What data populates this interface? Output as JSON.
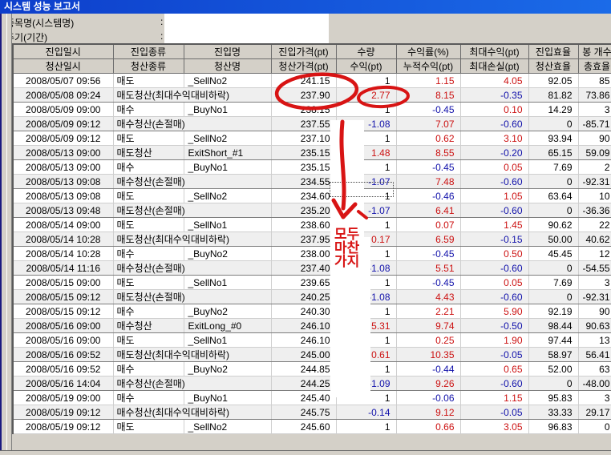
{
  "window": {
    "title": "시스템 성능 보고서"
  },
  "info": {
    "fields": [
      {
        "label": "종목명(시스템명)",
        "colon": ":",
        "value": ""
      },
      {
        "label": "주기(기간)",
        "colon": ":",
        "value": ""
      }
    ]
  },
  "table": {
    "header_row1": [
      "진입일시",
      "진입종류",
      "진입명",
      "진입가격(pt)",
      "수량",
      "수익률(%)",
      "최대수익(pt)",
      "진입효율",
      "봉 개수"
    ],
    "header_row2": [
      "청산일시",
      "청산종류",
      "청산명",
      "청산가격(pt)",
      "수익(pt)",
      "누적수익(pt)",
      "최대손실(pt)",
      "청산효율",
      "총효율"
    ],
    "rows": [
      {
        "kind": "entry",
        "datetime": "2008/05/07 09:56",
        "type": "매도",
        "name": "_SellNo2",
        "price": "241.15",
        "qty": "1",
        "pct": "1.15",
        "max": "4.05",
        "eff": "92.05",
        "bars": "85"
      },
      {
        "kind": "exit",
        "datetime": "2008/05/08 09:24",
        "type": "매도청산(최대수익대비하락)",
        "name": "",
        "price": "237.90",
        "qty": "2.77",
        "pct": "8.15",
        "max": "-0.35",
        "eff": "81.82",
        "bars": "73.86"
      },
      {
        "kind": "entry",
        "datetime": "2008/05/09 09:00",
        "type": "매수",
        "name": "_BuyNo1",
        "price": "238.15",
        "qty": "1",
        "pct": "-0.45",
        "max": "0.10",
        "eff": "14.29",
        "bars": "3"
      },
      {
        "kind": "exit",
        "datetime": "2008/05/09 09:12",
        "type": "매수청산(손절매)",
        "name": "",
        "price": "237.55",
        "qty": "-1.08",
        "pct": "7.07",
        "max": "-0.60",
        "eff": "0",
        "bars": "-85.71"
      },
      {
        "kind": "entry",
        "datetime": "2008/05/09 09:12",
        "type": "매도",
        "name": "_SellNo2",
        "price": "237.10",
        "qty": "1",
        "pct": "0.62",
        "max": "3.10",
        "eff": "93.94",
        "bars": "90"
      },
      {
        "kind": "exit",
        "datetime": "2008/05/13 09:00",
        "type": "매도청산",
        "name": "ExitShort_#1",
        "price": "235.15",
        "qty": "1.48",
        "pct": "8.55",
        "max": "-0.20",
        "eff": "65.15",
        "bars": "59.09"
      },
      {
        "kind": "entry",
        "datetime": "2008/05/13 09:00",
        "type": "매수",
        "name": "_BuyNo1",
        "price": "235.15",
        "qty": "1",
        "pct": "-0.45",
        "max": "0.05",
        "eff": "7.69",
        "bars": "2"
      },
      {
        "kind": "exit",
        "datetime": "2008/05/13 09:08",
        "type": "매수청산(손절매)",
        "name": "",
        "price": "234.55",
        "qty": "-1.07",
        "pct": "7.48",
        "max": "-0.60",
        "eff": "0",
        "bars": "-92.31",
        "focus": true
      },
      {
        "kind": "entry",
        "datetime": "2008/05/13 09:08",
        "type": "매도",
        "name": "_SellNo2",
        "price": "234.60",
        "qty": "1",
        "pct": "-0.46",
        "max": "1.05",
        "eff": "63.64",
        "bars": "10"
      },
      {
        "kind": "exit",
        "datetime": "2008/05/13 09:48",
        "type": "매도청산(손절매)",
        "name": "",
        "price": "235.20",
        "qty": "-1.07",
        "pct": "6.41",
        "max": "-0.60",
        "eff": "0",
        "bars": "-36.36"
      },
      {
        "kind": "entry",
        "datetime": "2008/05/14 09:00",
        "type": "매도",
        "name": "_SellNo1",
        "price": "238.60",
        "qty": "1",
        "pct": "0.07",
        "max": "1.45",
        "eff": "90.62",
        "bars": "22"
      },
      {
        "kind": "exit",
        "datetime": "2008/05/14 10:28",
        "type": "매도청산(최대수익대비하락)",
        "name": "",
        "price": "237.95",
        "qty": "0.17",
        "pct": "6.59",
        "max": "-0.15",
        "eff": "50.00",
        "bars": "40.62"
      },
      {
        "kind": "entry",
        "datetime": "2008/05/14 10:28",
        "type": "매수",
        "name": "_BuyNo2",
        "price": "238.00",
        "qty": "1",
        "pct": "-0.45",
        "max": "0.50",
        "eff": "45.45",
        "bars": "12"
      },
      {
        "kind": "exit",
        "datetime": "2008/05/14 11:16",
        "type": "매수청산(손절매)",
        "name": "",
        "price": "237.40",
        "qty": "-1.08",
        "pct": "5.51",
        "max": "-0.60",
        "eff": "0",
        "bars": "-54.55"
      },
      {
        "kind": "entry",
        "datetime": "2008/05/15 09:00",
        "type": "매도",
        "name": "_SellNo1",
        "price": "239.65",
        "qty": "1",
        "pct": "-0.45",
        "max": "0.05",
        "eff": "7.69",
        "bars": "3"
      },
      {
        "kind": "exit",
        "datetime": "2008/05/15 09:12",
        "type": "매도청산(손절매)",
        "name": "",
        "price": "240.25",
        "qty": "-1.08",
        "pct": "4.43",
        "max": "-0.60",
        "eff": "0",
        "bars": "-92.31"
      },
      {
        "kind": "entry",
        "datetime": "2008/05/15 09:12",
        "type": "매수",
        "name": "_BuyNo2",
        "price": "240.30",
        "qty": "1",
        "pct": "2.21",
        "max": "5.90",
        "eff": "92.19",
        "bars": "90"
      },
      {
        "kind": "exit",
        "datetime": "2008/05/16 09:00",
        "type": "매수청산",
        "name": "ExitLong_#0",
        "price": "246.10",
        "qty": "5.31",
        "pct": "9.74",
        "max": "-0.50",
        "eff": "98.44",
        "bars": "90.63"
      },
      {
        "kind": "entry",
        "datetime": "2008/05/16 09:00",
        "type": "매도",
        "name": "_SellNo1",
        "price": "246.10",
        "qty": "1",
        "pct": "0.25",
        "max": "1.90",
        "eff": "97.44",
        "bars": "13"
      },
      {
        "kind": "exit",
        "datetime": "2008/05/16 09:52",
        "type": "매도청산(최대수익대비하락)",
        "name": "",
        "price": "245.00",
        "qty": "0.61",
        "pct": "10.35",
        "max": "-0.05",
        "eff": "58.97",
        "bars": "56.41"
      },
      {
        "kind": "entry",
        "datetime": "2008/05/16 09:52",
        "type": "매수",
        "name": "_BuyNo2",
        "price": "244.85",
        "qty": "1",
        "pct": "-0.44",
        "max": "0.65",
        "eff": "52.00",
        "bars": "63"
      },
      {
        "kind": "exit",
        "datetime": "2008/05/16 14:04",
        "type": "매수청산(손절매)",
        "name": "",
        "price": "244.25",
        "qty": "-1.09",
        "pct": "9.26",
        "max": "-0.60",
        "eff": "0",
        "bars": "-48.00"
      },
      {
        "kind": "entry",
        "datetime": "2008/05/19 09:00",
        "type": "매수",
        "name": "_BuyNo1",
        "price": "245.40",
        "qty": "1",
        "pct": "-0.06",
        "max": "1.15",
        "eff": "95.83",
        "bars": "3"
      },
      {
        "kind": "exit",
        "datetime": "2008/05/19 09:12",
        "type": "매수청산(최대수익대비하락)",
        "name": "",
        "price": "245.75",
        "qty": "-0.14",
        "pct": "9.12",
        "max": "-0.05",
        "eff": "33.33",
        "bars": "29.17"
      },
      {
        "kind": "entry",
        "datetime": "2008/05/19 09:12",
        "type": "매도",
        "name": "_SellNo2",
        "price": "245.60",
        "qty": "1",
        "pct": "0.66",
        "max": "3.05",
        "eff": "96.83",
        "bars": "0"
      }
    ]
  },
  "annotations": {
    "note_lines": [
      "모두",
      "마찬",
      "가지"
    ],
    "note_full_text": "모두 마찬가지",
    "marker_color": "#d81414"
  },
  "colors": {
    "positive_value": "#cc1111",
    "negative_value": "#1111aa",
    "titlebar_left": "#0d3ecb",
    "titlebar_right": "#1b6be8",
    "panel_gray": "#d4d0c8"
  }
}
